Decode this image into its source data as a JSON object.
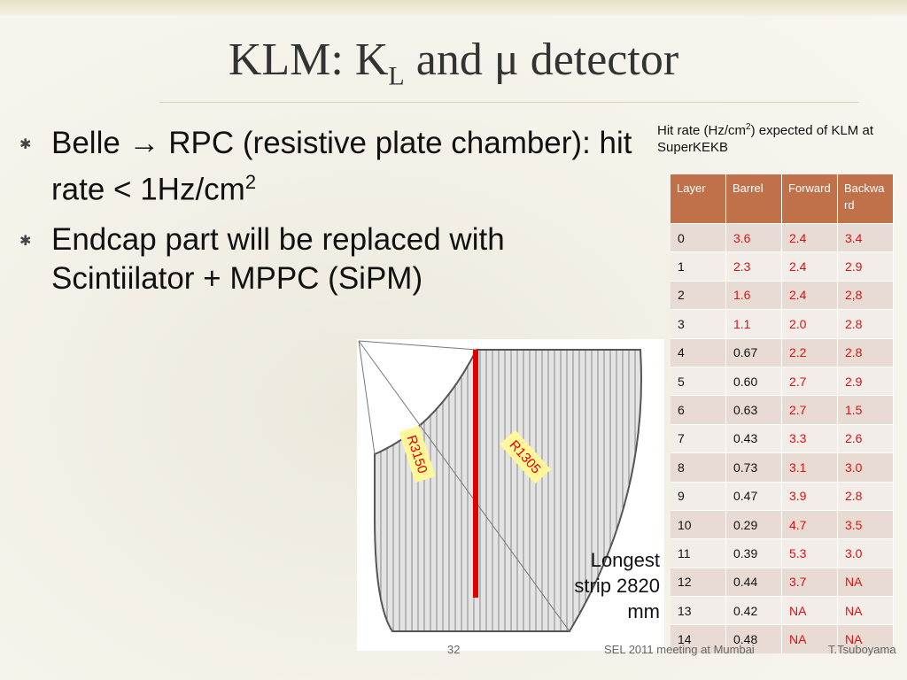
{
  "title": {
    "main": "KLM: K",
    "sub": "L",
    "rest": " and μ detector"
  },
  "bullets": [
    {
      "text": "Belle → RPC (resistive plate chamber): hit rate < 1Hz/cm",
      "sup": "2"
    },
    {
      "text": "Endcap part will be replaced with Scintiilator + MPPC (SiPM)"
    }
  ],
  "caption": {
    "before": "Hit rate (Hz/cm",
    "sup": "2",
    "after": ") expected of KLM at SuperKEKB"
  },
  "table": {
    "header": [
      "Layer",
      "Barrel",
      "Forward",
      "Backward"
    ],
    "rows": [
      [
        "0",
        "3.6",
        "2.4",
        "3.4"
      ],
      [
        "1",
        "2.3",
        "2.4",
        "2.9"
      ],
      [
        "2",
        "1.6",
        "2.4",
        "2,8"
      ],
      [
        "3",
        "1.1",
        "2.0",
        "2.8"
      ],
      [
        "4",
        "0.67",
        "2.2",
        "2.8"
      ],
      [
        "5",
        "0.60",
        "2.7",
        "2.9"
      ],
      [
        "6",
        "0.63",
        "2.7",
        "1.5"
      ],
      [
        "7",
        "0.43",
        "3.3",
        "2.6"
      ],
      [
        "8",
        "0.73",
        "3.1",
        "3.0"
      ],
      [
        "9",
        "0.47",
        "3.9",
        "2.8"
      ],
      [
        "10",
        "0.29",
        "4.7",
        "3.5"
      ],
      [
        "11",
        "0.39",
        "5.3",
        "3.0"
      ],
      [
        "12",
        "0.44",
        "3.7",
        "NA"
      ],
      [
        "13",
        "0.42",
        "NA",
        "NA"
      ],
      [
        "14",
        "0.48",
        "NA",
        "NA"
      ]
    ]
  },
  "diagram": {
    "label_outer": "R3150",
    "label_inner": "R1305",
    "note": "Longest strip 2820 mm"
  },
  "footer": {
    "page": "32",
    "event": "SEL 2011 meeting at Mumbai",
    "author": "T.Tsuboyama"
  }
}
